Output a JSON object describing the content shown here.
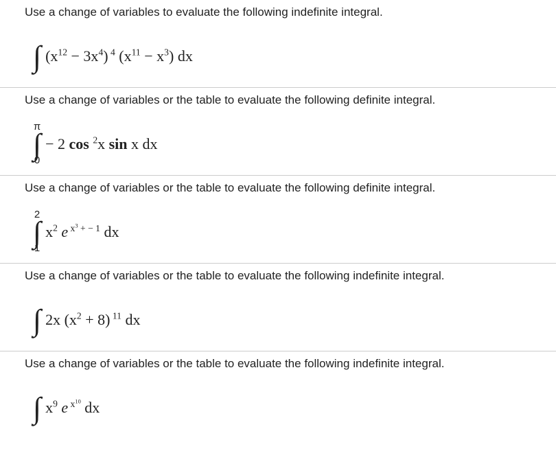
{
  "problems": [
    {
      "prompt": "Use a change of variables to evaluate the following indefinite integral.",
      "upper": "",
      "lower": "",
      "integrand_html": "(x<sup>12</sup> − 3x<sup>4</sup>)<sup> 4</sup> (x<sup>11</sup> − x<sup>3</sup>) <span class='rm'>dx</span>"
    },
    {
      "prompt": "Use a change of variables or the table to evaluate the following definite integral.",
      "upper": "π",
      "lower": "0",
      "integrand_html": "− 2 <span class='bold rm'>cos</span> <sup>2</sup>x <span class='bold rm'>sin</span> x <span class='rm'>dx</span>"
    },
    {
      "prompt": "Use a change of variables or the table to evaluate the following definite integral.",
      "upper": "2",
      "lower": "1",
      "integrand_html": "x<sup>2</sup> <span class='serif'>e</span><sup> x<sup>3</sup> + − 1</sup> <span class='rm'>dx</span>"
    },
    {
      "prompt": "Use a change of variables or the table to evaluate the following indefinite integral.",
      "upper": "",
      "lower": "",
      "integrand_html": "2x (x<sup>2</sup> + 8)<sup> 11</sup> <span class='rm'>dx</span>"
    },
    {
      "prompt": "Use a change of variables or the table to evaluate the following indefinite integral.",
      "upper": "",
      "lower": "",
      "integrand_html": "x<sup>9</sup> <span class='serif'>e</span><sup> x<sup>10</sup></sup> <span class='rm'>dx</span>"
    }
  ]
}
